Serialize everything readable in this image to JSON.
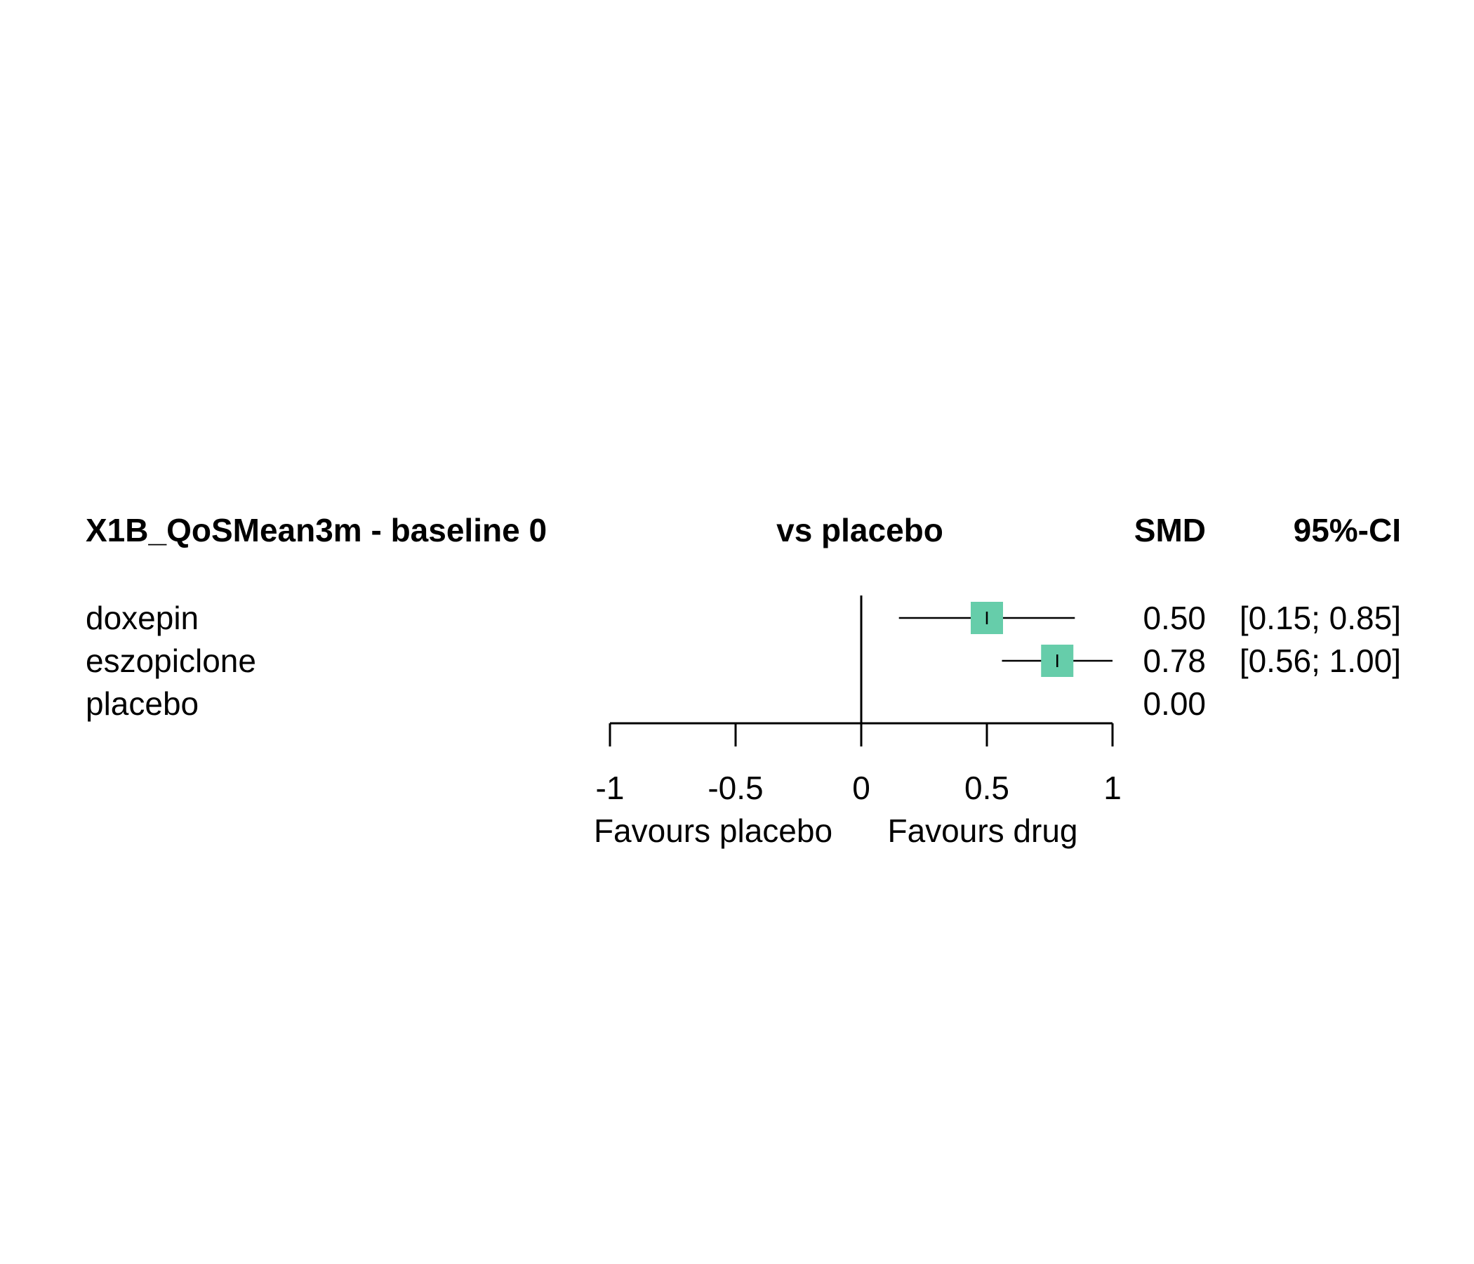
{
  "chart_data": {
    "type": "forest",
    "headers": {
      "outcome": "X1B_QoSMean3m - baseline 0",
      "comparison": "vs placebo",
      "effect": "SMD",
      "ci": "95%-CI"
    },
    "rows": [
      {
        "label": "doxepin",
        "smd": 0.5,
        "lower": 0.15,
        "upper": 0.85,
        "smd_text": "0.50",
        "ci_text": "[0.15; 0.85]"
      },
      {
        "label": "eszopiclone",
        "smd": 0.78,
        "lower": 0.56,
        "upper": 1.0,
        "smd_text": "0.78",
        "ci_text": "[0.56; 1.00]"
      },
      {
        "label": "placebo",
        "smd": 0.0,
        "lower": null,
        "upper": null,
        "smd_text": "0.00",
        "ci_text": ""
      }
    ],
    "x_axis": {
      "range": [
        -1,
        1
      ],
      "ticks": [
        -1,
        -0.5,
        0,
        0.5,
        1
      ],
      "tick_labels": [
        "-1",
        "-0.5",
        "0",
        "0.5",
        "1"
      ],
      "label_left": "Favours placebo",
      "label_right": "Favours drug"
    },
    "reference_line": 0,
    "colors": {
      "square": "#66CDAA",
      "line": "#000000"
    }
  }
}
